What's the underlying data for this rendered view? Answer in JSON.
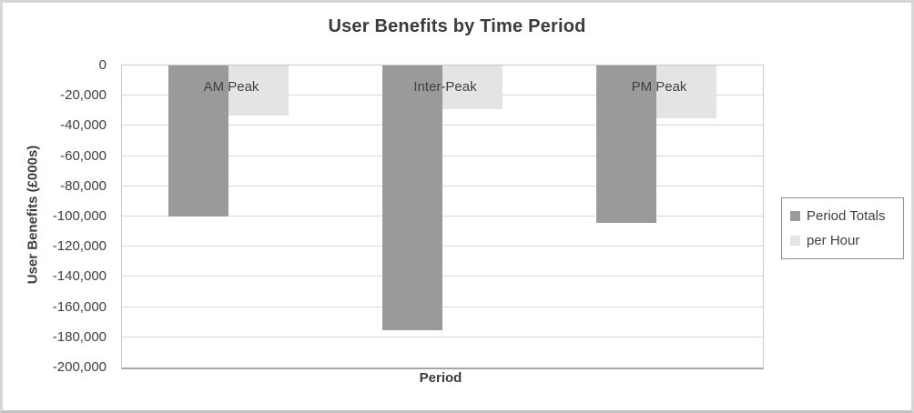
{
  "chart_data": {
    "type": "bar",
    "title": "User Benefits by Time Period",
    "xlabel": "Period",
    "ylabel": "User Benefits (£000s)",
    "categories": [
      "AM Peak",
      "Inter-Peak",
      "PM Peak"
    ],
    "series": [
      {
        "name": "Period Totals",
        "color": "#9a9a9a",
        "values": [
          -100000,
          -175000,
          -104000
        ]
      },
      {
        "name": "per Hour",
        "color": "#e4e4e4",
        "values": [
          -33333,
          -29167,
          -34667
        ]
      }
    ],
    "ylim": [
      -200000,
      0
    ],
    "ytick_interval": 20000,
    "ytick_labels": [
      "0",
      "-20,000",
      "-40,000",
      "-60,000",
      "-80,000",
      "-100,000",
      "-120,000",
      "-140,000",
      "-160,000",
      "-180,000",
      "-200,000"
    ],
    "grid": true,
    "legend": {
      "position": "right",
      "entries": [
        "Period Totals",
        "per Hour"
      ]
    },
    "colors": {
      "gridline": "#d9d9d9",
      "axis_line": "#a6a6a6",
      "text": "#404040"
    }
  }
}
